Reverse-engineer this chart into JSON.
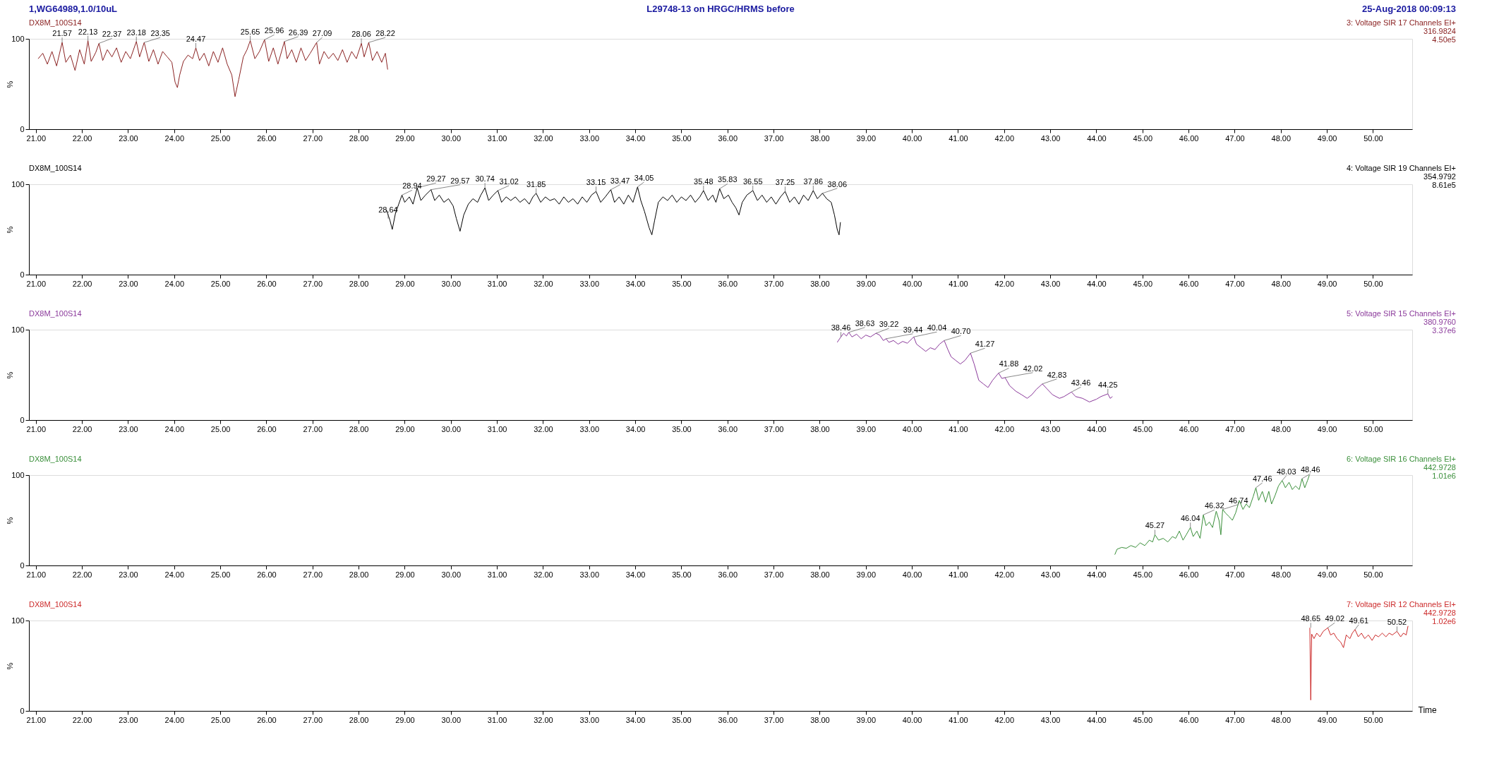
{
  "chart_data": [
    {
      "type": "line",
      "title": "L29748-13 on HRGC/HRMS before",
      "subtitle": "DX8M_100S14",
      "color": "#8b2323",
      "annotations": [
        "1,WG64989,1.0/10uL",
        "25-Aug-2018  00:09:13",
        "3: Voltage SIR 17 Channels EI+",
        "316.9824",
        "4.50e5",
        {
          "text": "21.57",
          "x": 21.57,
          "y": 96
        },
        {
          "text": "22.13",
          "x": 22.13,
          "y": 98
        },
        {
          "text": "22.37",
          "x": 22.37,
          "y": 95
        },
        {
          "text": "23.18",
          "x": 23.18,
          "y": 97
        },
        {
          "text": "23.35",
          "x": 23.35,
          "y": 96
        },
        {
          "text": "24.47",
          "x": 24.47,
          "y": 90
        },
        {
          "text": "25.65",
          "x": 25.65,
          "y": 98
        },
        {
          "text": "25.96",
          "x": 25.96,
          "y": 99
        },
        {
          "text": "26.39",
          "x": 26.39,
          "y": 97
        },
        {
          "text": "27.09",
          "x": 27.09,
          "y": 96
        },
        {
          "text": "28.06",
          "x": 28.06,
          "y": 95
        },
        {
          "text": "28.22",
          "x": 28.22,
          "y": 96
        }
      ],
      "x": [
        21.05,
        21.15,
        21.25,
        21.35,
        21.45,
        21.57,
        21.65,
        21.75,
        21.85,
        21.95,
        22.05,
        22.13,
        22.2,
        22.3,
        22.37,
        22.45,
        22.55,
        22.65,
        22.75,
        22.85,
        22.95,
        23.05,
        23.18,
        23.25,
        23.35,
        23.45,
        23.55,
        23.65,
        23.75,
        23.85,
        23.95,
        24.02,
        24.07,
        24.12,
        24.2,
        24.3,
        24.4,
        24.47,
        24.55,
        24.65,
        24.75,
        24.85,
        24.95,
        25.05,
        25.15,
        25.25,
        25.32,
        25.4,
        25.5,
        25.58,
        25.65,
        25.75,
        25.85,
        25.96,
        26.05,
        26.15,
        26.25,
        26.39,
        26.45,
        26.55,
        26.65,
        26.75,
        26.85,
        26.95,
        27.09,
        27.15,
        27.25,
        27.35,
        27.45,
        27.55,
        27.65,
        27.75,
        27.85,
        27.95,
        28.06,
        28.12,
        28.22,
        28.3,
        28.4,
        28.5,
        28.58,
        28.63
      ],
      "values": [
        78,
        84,
        72,
        86,
        70,
        96,
        74,
        82,
        65,
        88,
        72,
        98,
        75,
        85,
        95,
        76,
        88,
        80,
        90,
        74,
        86,
        78,
        97,
        80,
        96,
        75,
        88,
        72,
        86,
        80,
        74,
        52,
        46,
        60,
        75,
        82,
        78,
        90,
        76,
        84,
        70,
        86,
        74,
        90,
        72,
        60,
        36,
        55,
        80,
        88,
        98,
        78,
        86,
        99,
        75,
        90,
        72,
        97,
        78,
        88,
        74,
        90,
        76,
        84,
        96,
        72,
        86,
        78,
        84,
        76,
        88,
        74,
        86,
        78,
        95,
        80,
        96,
        76,
        86,
        74,
        84,
        66
      ],
      "xlim": [
        20.85,
        50.85
      ],
      "ylim": [
        0,
        100
      ],
      "yticks": [
        0,
        100
      ],
      "ylabel": "%",
      "xticks": [
        {
          "value": 21,
          "label": "21.00"
        },
        {
          "value": 22,
          "label": "22.00"
        },
        {
          "value": 23,
          "label": "23.00"
        },
        {
          "value": 24,
          "label": "24.00"
        },
        {
          "value": 25,
          "label": "25.00"
        },
        {
          "value": 26,
          "label": "26.00"
        },
        {
          "value": 27,
          "label": "27.00"
        },
        {
          "value": 28,
          "label": "28.00"
        },
        {
          "value": 29,
          "label": "29.00"
        },
        {
          "value": 30,
          "label": "30.00"
        },
        {
          "value": 31,
          "label": "31.00"
        },
        {
          "value": 32,
          "label": "32.00"
        },
        {
          "value": 33,
          "label": "33.00"
        },
        {
          "value": 34,
          "label": "34.00"
        },
        {
          "value": 35,
          "label": "35.00"
        },
        {
          "value": 36,
          "label": "36.00"
        },
        {
          "value": 37,
          "label": "37.00"
        },
        {
          "value": 38,
          "label": "38.00"
        },
        {
          "value": 39,
          "label": "39.00"
        },
        {
          "value": 40,
          "label": "40.00"
        },
        {
          "value": 41,
          "label": "41.00"
        },
        {
          "value": 42,
          "label": "42.00"
        },
        {
          "value": 43,
          "label": "43.00"
        },
        {
          "value": 44,
          "label": "44.00"
        },
        {
          "value": 45,
          "label": "45.00"
        },
        {
          "value": 46,
          "label": "46.00"
        },
        {
          "value": 47,
          "label": "47.00"
        },
        {
          "value": 48,
          "label": "48.00"
        },
        {
          "value": 49,
          "label": "49.00"
        },
        {
          "value": 50,
          "label": "50.00"
        }
      ]
    },
    {
      "type": "line",
      "subtitle": "DX8M_100S14",
      "color": "#000000",
      "annotations": [
        "4: Voltage SIR 19 Channels EI+",
        "354.9792",
        "8.61e5",
        {
          "text": "28.64",
          "x": 28.64,
          "y": 62
        },
        {
          "text": "28.94",
          "x": 28.94,
          "y": 88
        },
        {
          "text": "29.27",
          "x": 29.27,
          "y": 96
        },
        {
          "text": "29.57",
          "x": 29.57,
          "y": 94
        },
        {
          "text": "30.74",
          "x": 30.74,
          "y": 96
        },
        {
          "text": "31.02",
          "x": 31.02,
          "y": 93
        },
        {
          "text": "31.85",
          "x": 31.85,
          "y": 90
        },
        {
          "text": "33.15",
          "x": 33.15,
          "y": 92
        },
        {
          "text": "33.47",
          "x": 33.47,
          "y": 94
        },
        {
          "text": "34.05",
          "x": 34.05,
          "y": 97
        },
        {
          "text": "35.48",
          "x": 35.48,
          "y": 93
        },
        {
          "text": "35.83",
          "x": 35.83,
          "y": 95
        },
        {
          "text": "36.55",
          "x": 36.55,
          "y": 93
        },
        {
          "text": "37.25",
          "x": 37.25,
          "y": 92
        },
        {
          "text": "37.86",
          "x": 37.86,
          "y": 93
        },
        {
          "text": "38.06",
          "x": 38.06,
          "y": 90
        }
      ],
      "x": [
        28.6,
        28.68,
        28.73,
        28.8,
        28.87,
        28.94,
        29.0,
        29.1,
        29.18,
        29.27,
        29.35,
        29.45,
        29.57,
        29.65,
        29.75,
        29.85,
        29.95,
        30.05,
        30.12,
        30.2,
        30.28,
        30.38,
        30.48,
        30.58,
        30.65,
        30.74,
        30.82,
        30.92,
        31.02,
        31.1,
        31.2,
        31.3,
        31.4,
        31.5,
        31.6,
        31.7,
        31.78,
        31.85,
        31.95,
        32.05,
        32.15,
        32.25,
        32.35,
        32.45,
        32.55,
        32.65,
        32.75,
        32.85,
        32.95,
        33.05,
        33.15,
        33.25,
        33.35,
        33.47,
        33.55,
        33.65,
        33.75,
        33.85,
        33.95,
        34.05,
        34.12,
        34.2,
        34.3,
        34.36,
        34.42,
        34.5,
        34.6,
        34.7,
        34.8,
        34.9,
        35.0,
        35.1,
        35.2,
        35.3,
        35.4,
        35.48,
        35.58,
        35.68,
        35.75,
        35.83,
        35.92,
        36.02,
        36.1,
        36.18,
        36.25,
        36.32,
        36.42,
        36.55,
        36.65,
        36.75,
        36.85,
        36.95,
        37.05,
        37.15,
        37.25,
        37.35,
        37.45,
        37.55,
        37.65,
        37.75,
        37.86,
        37.95,
        38.06,
        38.15,
        38.25,
        38.32,
        38.38,
        38.42,
        38.45
      ],
      "values": [
        72,
        60,
        50,
        68,
        78,
        88,
        80,
        86,
        78,
        96,
        82,
        88,
        94,
        82,
        88,
        80,
        84,
        76,
        62,
        48,
        66,
        78,
        84,
        80,
        88,
        96,
        82,
        88,
        93,
        80,
        86,
        82,
        86,
        80,
        84,
        78,
        86,
        90,
        80,
        86,
        82,
        84,
        78,
        86,
        80,
        84,
        78,
        86,
        80,
        88,
        92,
        80,
        86,
        94,
        80,
        86,
        78,
        88,
        80,
        97,
        82,
        70,
        52,
        44,
        60,
        80,
        86,
        82,
        88,
        80,
        86,
        82,
        88,
        80,
        86,
        93,
        82,
        88,
        80,
        95,
        84,
        88,
        80,
        74,
        66,
        80,
        88,
        93,
        82,
        88,
        80,
        86,
        78,
        86,
        92,
        80,
        86,
        78,
        88,
        82,
        93,
        84,
        90,
        84,
        80,
        66,
        50,
        44,
        58
      ],
      "xlim": [
        20.85,
        50.85
      ],
      "ylim": [
        0,
        100
      ],
      "yticks": [
        0,
        100
      ],
      "ylabel": "%",
      "xticks": [
        {
          "value": 21,
          "label": "21.00"
        },
        {
          "value": 22,
          "label": "22.00"
        },
        {
          "value": 23,
          "label": "23.00"
        },
        {
          "value": 24,
          "label": "24.00"
        },
        {
          "value": 25,
          "label": "25.00"
        },
        {
          "value": 26,
          "label": "26.00"
        },
        {
          "value": 27,
          "label": "27.00"
        },
        {
          "value": 28,
          "label": "28.00"
        },
        {
          "value": 29,
          "label": "29.00"
        },
        {
          "value": 30,
          "label": "30.00"
        },
        {
          "value": 31,
          "label": "31.00"
        },
        {
          "value": 32,
          "label": "32.00"
        },
        {
          "value": 33,
          "label": "33.00"
        },
        {
          "value": 34,
          "label": "34.00"
        },
        {
          "value": 35,
          "label": "35.00"
        },
        {
          "value": 36,
          "label": "36.00"
        },
        {
          "value": 37,
          "label": "37.00"
        },
        {
          "value": 38,
          "label": "38.00"
        },
        {
          "value": 39,
          "label": "39.00"
        },
        {
          "value": 40,
          "label": "40.00"
        },
        {
          "value": 41,
          "label": "41.00"
        },
        {
          "value": 42,
          "label": "42.00"
        },
        {
          "value": 43,
          "label": "43.00"
        },
        {
          "value": 44,
          "label": "44.00"
        },
        {
          "value": 45,
          "label": "45.00"
        },
        {
          "value": 46,
          "label": "46.00"
        },
        {
          "value": 47,
          "label": "47.00"
        },
        {
          "value": 48,
          "label": "48.00"
        },
        {
          "value": 49,
          "label": "49.00"
        },
        {
          "value": 50,
          "label": "50.00"
        }
      ]
    },
    {
      "type": "line",
      "subtitle": "DX8M_100S14",
      "color": "#8b3a9b",
      "annotations": [
        "5: Voltage SIR 15 Channels EI+",
        "380.9760",
        "3.37e6",
        {
          "text": "38.46",
          "x": 38.46,
          "y": 92
        },
        {
          "text": "38.63",
          "x": 38.63,
          "y": 97
        },
        {
          "text": "39.22",
          "x": 39.22,
          "y": 96
        },
        {
          "text": "39.44",
          "x": 39.44,
          "y": 90
        },
        {
          "text": "40.04",
          "x": 40.04,
          "y": 92
        },
        {
          "text": "40.70",
          "x": 40.7,
          "y": 88
        },
        {
          "text": "41.27",
          "x": 41.27,
          "y": 74
        },
        {
          "text": "41.88",
          "x": 41.88,
          "y": 52
        },
        {
          "text": "42.02",
          "x": 42.02,
          "y": 47
        },
        {
          "text": "42.83",
          "x": 42.83,
          "y": 40
        },
        {
          "text": "43.46",
          "x": 43.46,
          "y": 31
        },
        {
          "text": "44.25",
          "x": 44.25,
          "y": 29
        }
      ],
      "x": [
        38.38,
        38.46,
        38.52,
        38.58,
        38.63,
        38.7,
        38.8,
        38.9,
        39.0,
        39.1,
        39.22,
        39.3,
        39.38,
        39.44,
        39.5,
        39.6,
        39.7,
        39.8,
        39.9,
        40.0,
        40.04,
        40.1,
        40.2,
        40.3,
        40.4,
        40.5,
        40.6,
        40.7,
        40.78,
        40.85,
        40.95,
        41.05,
        41.15,
        41.27,
        41.35,
        41.45,
        41.55,
        41.65,
        41.75,
        41.88,
        41.95,
        42.02,
        42.12,
        42.25,
        42.38,
        42.5,
        42.6,
        42.7,
        42.83,
        42.92,
        43.05,
        43.2,
        43.3,
        43.46,
        43.55,
        43.7,
        43.85,
        44.0,
        44.1,
        44.25,
        44.3,
        44.35
      ],
      "values": [
        86,
        92,
        96,
        93,
        97,
        92,
        95,
        90,
        94,
        92,
        96,
        94,
        88,
        90,
        86,
        88,
        84,
        87,
        85,
        90,
        92,
        84,
        80,
        76,
        80,
        78,
        84,
        88,
        78,
        70,
        66,
        62,
        66,
        74,
        62,
        44,
        40,
        36,
        44,
        52,
        46,
        47,
        38,
        32,
        28,
        24,
        28,
        34,
        40,
        35,
        28,
        24,
        26,
        31,
        26,
        24,
        20,
        23,
        26,
        29,
        24,
        26
      ],
      "xlim": [
        20.85,
        50.85
      ],
      "ylim": [
        0,
        100
      ],
      "yticks": [
        0,
        100
      ],
      "ylabel": "%",
      "xticks": [
        {
          "value": 21,
          "label": "21.00"
        },
        {
          "value": 22,
          "label": "22.00"
        },
        {
          "value": 23,
          "label": "23.00"
        },
        {
          "value": 24,
          "label": "24.00"
        },
        {
          "value": 25,
          "label": "25.00"
        },
        {
          "value": 26,
          "label": "26.00"
        },
        {
          "value": 27,
          "label": "27.00"
        },
        {
          "value": 28,
          "label": "28.00"
        },
        {
          "value": 29,
          "label": "29.00"
        },
        {
          "value": 30,
          "label": "30.00"
        },
        {
          "value": 31,
          "label": "31.00"
        },
        {
          "value": 32,
          "label": "32.00"
        },
        {
          "value": 33,
          "label": "33.00"
        },
        {
          "value": 34,
          "label": "34.00"
        },
        {
          "value": 35,
          "label": "35.00"
        },
        {
          "value": 36,
          "label": "36.00"
        },
        {
          "value": 37,
          "label": "37.00"
        },
        {
          "value": 38,
          "label": "38.00"
        },
        {
          "value": 39,
          "label": "39.00"
        },
        {
          "value": 40,
          "label": "40.00"
        },
        {
          "value": 41,
          "label": "41.00"
        },
        {
          "value": 42,
          "label": "42.00"
        },
        {
          "value": 43,
          "label": "43.00"
        },
        {
          "value": 44,
          "label": "44.00"
        },
        {
          "value": 45,
          "label": "45.00"
        },
        {
          "value": 46,
          "label": "46.00"
        },
        {
          "value": 47,
          "label": "47.00"
        },
        {
          "value": 48,
          "label": "48.00"
        },
        {
          "value": 49,
          "label": "49.00"
        },
        {
          "value": 50,
          "label": "50.00"
        }
      ]
    },
    {
      "type": "line",
      "subtitle": "DX8M_100S14",
      "color": "#3a8f3a",
      "annotations": [
        "6: Voltage SIR 16 Channels EI+",
        "442.9728",
        "1.01e6",
        {
          "text": "45.27",
          "x": 45.27,
          "y": 34
        },
        {
          "text": "46.04",
          "x": 46.04,
          "y": 42
        },
        {
          "text": "46.32",
          "x": 46.32,
          "y": 56
        },
        {
          "text": "46.74",
          "x": 46.74,
          "y": 62
        },
        {
          "text": "47.46",
          "x": 47.46,
          "y": 86
        },
        {
          "text": "48.03",
          "x": 48.03,
          "y": 94
        },
        {
          "text": "48.46",
          "x": 48.46,
          "y": 96
        }
      ],
      "x": [
        44.4,
        44.45,
        44.55,
        44.65,
        44.75,
        44.85,
        44.95,
        45.05,
        45.15,
        45.22,
        45.27,
        45.35,
        45.45,
        45.55,
        45.65,
        45.72,
        45.8,
        45.88,
        45.95,
        46.04,
        46.1,
        46.18,
        46.25,
        46.32,
        46.38,
        46.45,
        46.52,
        46.6,
        46.66,
        46.7,
        46.74,
        46.8,
        46.88,
        46.95,
        47.02,
        47.1,
        47.18,
        47.25,
        47.32,
        47.4,
        47.46,
        47.52,
        47.6,
        47.67,
        47.74,
        47.8,
        47.88,
        47.95,
        48.03,
        48.1,
        48.18,
        48.25,
        48.32,
        48.4,
        48.46,
        48.52,
        48.58,
        48.62
      ],
      "values": [
        12,
        18,
        20,
        19,
        22,
        20,
        25,
        22,
        28,
        26,
        34,
        28,
        30,
        26,
        32,
        30,
        38,
        28,
        34,
        42,
        32,
        38,
        30,
        56,
        44,
        48,
        42,
        60,
        50,
        34,
        62,
        58,
        54,
        50,
        58,
        72,
        62,
        68,
        64,
        76,
        86,
        72,
        82,
        70,
        82,
        68,
        78,
        88,
        94,
        86,
        92,
        84,
        88,
        84,
        96,
        86,
        94,
        100
      ],
      "xlim": [
        20.85,
        50.85
      ],
      "ylim": [
        0,
        100
      ],
      "yticks": [
        0,
        100
      ],
      "ylabel": "%",
      "xticks": [
        {
          "value": 21,
          "label": "21.00"
        },
        {
          "value": 22,
          "label": "22.00"
        },
        {
          "value": 23,
          "label": "23.00"
        },
        {
          "value": 24,
          "label": "24.00"
        },
        {
          "value": 25,
          "label": "25.00"
        },
        {
          "value": 26,
          "label": "26.00"
        },
        {
          "value": 27,
          "label": "27.00"
        },
        {
          "value": 28,
          "label": "28.00"
        },
        {
          "value": 29,
          "label": "29.00"
        },
        {
          "value": 30,
          "label": "30.00"
        },
        {
          "value": 31,
          "label": "31.00"
        },
        {
          "value": 32,
          "label": "32.00"
        },
        {
          "value": 33,
          "label": "33.00"
        },
        {
          "value": 34,
          "label": "34.00"
        },
        {
          "value": 35,
          "label": "35.00"
        },
        {
          "value": 36,
          "label": "36.00"
        },
        {
          "value": 37,
          "label": "37.00"
        },
        {
          "value": 38,
          "label": "38.00"
        },
        {
          "value": 39,
          "label": "39.00"
        },
        {
          "value": 40,
          "label": "40.00"
        },
        {
          "value": 41,
          "label": "41.00"
        },
        {
          "value": 42,
          "label": "42.00"
        },
        {
          "value": 43,
          "label": "43.00"
        },
        {
          "value": 44,
          "label": "44.00"
        },
        {
          "value": 45,
          "label": "45.00"
        },
        {
          "value": 46,
          "label": "46.00"
        },
        {
          "value": 47,
          "label": "47.00"
        },
        {
          "value": 48,
          "label": "48.00"
        },
        {
          "value": 49,
          "label": "49.00"
        },
        {
          "value": 50,
          "label": "50.00"
        }
      ]
    },
    {
      "type": "line",
      "subtitle": "DX8M_100S14",
      "color": "#cc2a2a",
      "xlabel": "Time",
      "annotations": [
        "7: Voltage SIR 12 Channels EI+",
        "442.9728",
        "1.02e6",
        {
          "text": "48.65",
          "x": 48.65,
          "y": 92
        },
        {
          "text": "49.02",
          "x": 49.02,
          "y": 92
        },
        {
          "text": "49.61",
          "x": 49.61,
          "y": 90
        },
        {
          "text": "50.52",
          "x": 50.52,
          "y": 88
        }
      ],
      "x": [
        48.63,
        48.65,
        48.67,
        48.72,
        48.78,
        48.85,
        48.92,
        49.02,
        49.08,
        49.15,
        49.22,
        49.3,
        49.36,
        49.42,
        49.5,
        49.55,
        49.61,
        49.68,
        49.75,
        49.82,
        49.9,
        49.98,
        50.05,
        50.12,
        50.2,
        50.28,
        50.35,
        50.42,
        50.52,
        50.6,
        50.66,
        50.72,
        50.76
      ],
      "values": [
        92,
        12,
        85,
        80,
        86,
        82,
        88,
        92,
        84,
        86,
        80,
        76,
        70,
        84,
        80,
        86,
        90,
        82,
        86,
        80,
        84,
        78,
        84,
        82,
        86,
        82,
        86,
        84,
        88,
        82,
        86,
        84,
        94
      ],
      "xlim": [
        20.85,
        50.85
      ],
      "ylim": [
        0,
        100
      ],
      "yticks": [
        0,
        100
      ],
      "ylabel": "%",
      "xticks": [
        {
          "value": 21,
          "label": "21.00"
        },
        {
          "value": 22,
          "label": "22.00"
        },
        {
          "value": 23,
          "label": "23.00"
        },
        {
          "value": 24,
          "label": "24.00"
        },
        {
          "value": 25,
          "label": "25.00"
        },
        {
          "value": 26,
          "label": "26.00"
        },
        {
          "value": 27,
          "label": "27.00"
        },
        {
          "value": 28,
          "label": "28.00"
        },
        {
          "value": 29,
          "label": "29.00"
        },
        {
          "value": 30,
          "label": "30.00"
        },
        {
          "value": 31,
          "label": "31.00"
        },
        {
          "value": 32,
          "label": "32.00"
        },
        {
          "value": 33,
          "label": "33.00"
        },
        {
          "value": 34,
          "label": "34.00"
        },
        {
          "value": 35,
          "label": "35.00"
        },
        {
          "value": 36,
          "label": "36.00"
        },
        {
          "value": 37,
          "label": "37.00"
        },
        {
          "value": 38,
          "label": "38.00"
        },
        {
          "value": 39,
          "label": "39.00"
        },
        {
          "value": 40,
          "label": "40.00"
        },
        {
          "value": 41,
          "label": "41.00"
        },
        {
          "value": 42,
          "label": "42.00"
        },
        {
          "value": 43,
          "label": "43.00"
        },
        {
          "value": 44,
          "label": "44.00"
        },
        {
          "value": 45,
          "label": "45.00"
        },
        {
          "value": 46,
          "label": "46.00"
        },
        {
          "value": 47,
          "label": "47.00"
        },
        {
          "value": 48,
          "label": "48.00"
        },
        {
          "value": 49,
          "label": "49.00"
        },
        {
          "value": 50,
          "label": "50.00"
        }
      ]
    }
  ]
}
